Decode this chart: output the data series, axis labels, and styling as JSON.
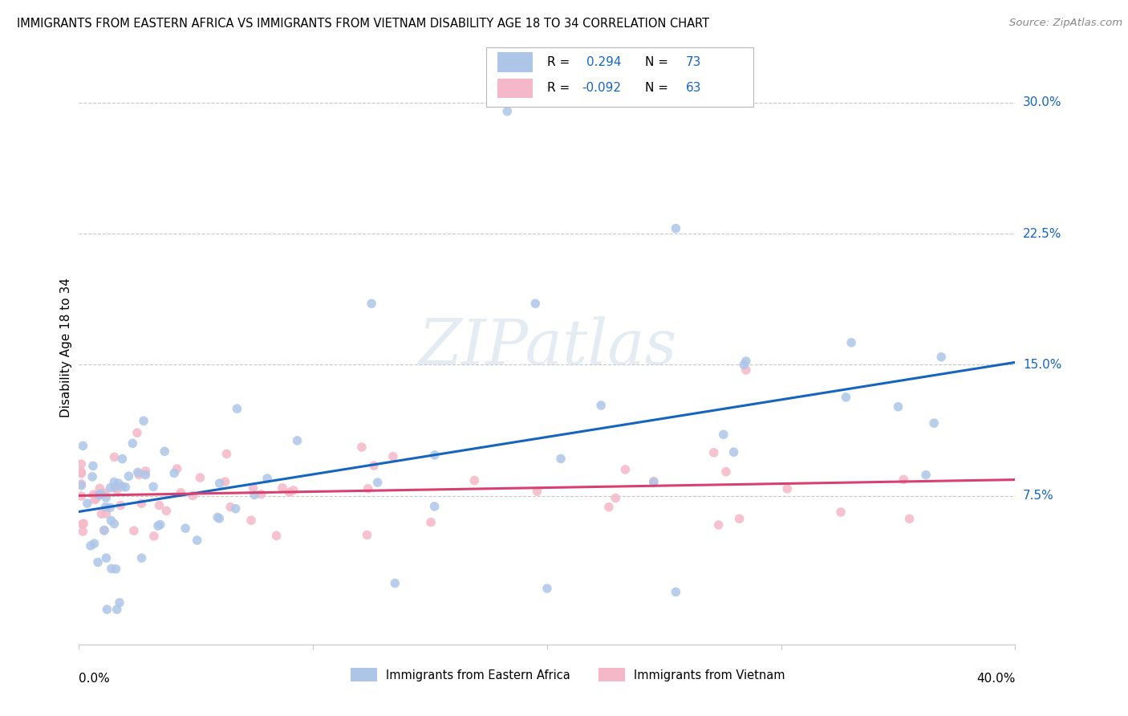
{
  "title": "IMMIGRANTS FROM EASTERN AFRICA VS IMMIGRANTS FROM VIETNAM DISABILITY AGE 18 TO 34 CORRELATION CHART",
  "source": "Source: ZipAtlas.com",
  "ylabel": "Disability Age 18 to 34",
  "ytick_labels": [
    "7.5%",
    "15.0%",
    "22.5%",
    "30.0%"
  ],
  "ytick_values": [
    0.075,
    0.15,
    0.225,
    0.3
  ],
  "xlim": [
    0.0,
    0.4
  ],
  "ylim": [
    -0.01,
    0.33
  ],
  "blue_R": 0.294,
  "blue_N": 73,
  "pink_R": -0.092,
  "pink_N": 63,
  "blue_color": "#adc6e8",
  "pink_color": "#f5b8c8",
  "blue_line_color": "#1565c0",
  "pink_line_color": "#d84070",
  "legend_label_blue": "Immigrants from Eastern Africa",
  "legend_label_pink": "Immigrants from Vietnam",
  "watermark": "ZIPatlas",
  "ytick_color": "#1565c0",
  "grid_color": "#c8c8c8",
  "background_color": "#ffffff"
}
